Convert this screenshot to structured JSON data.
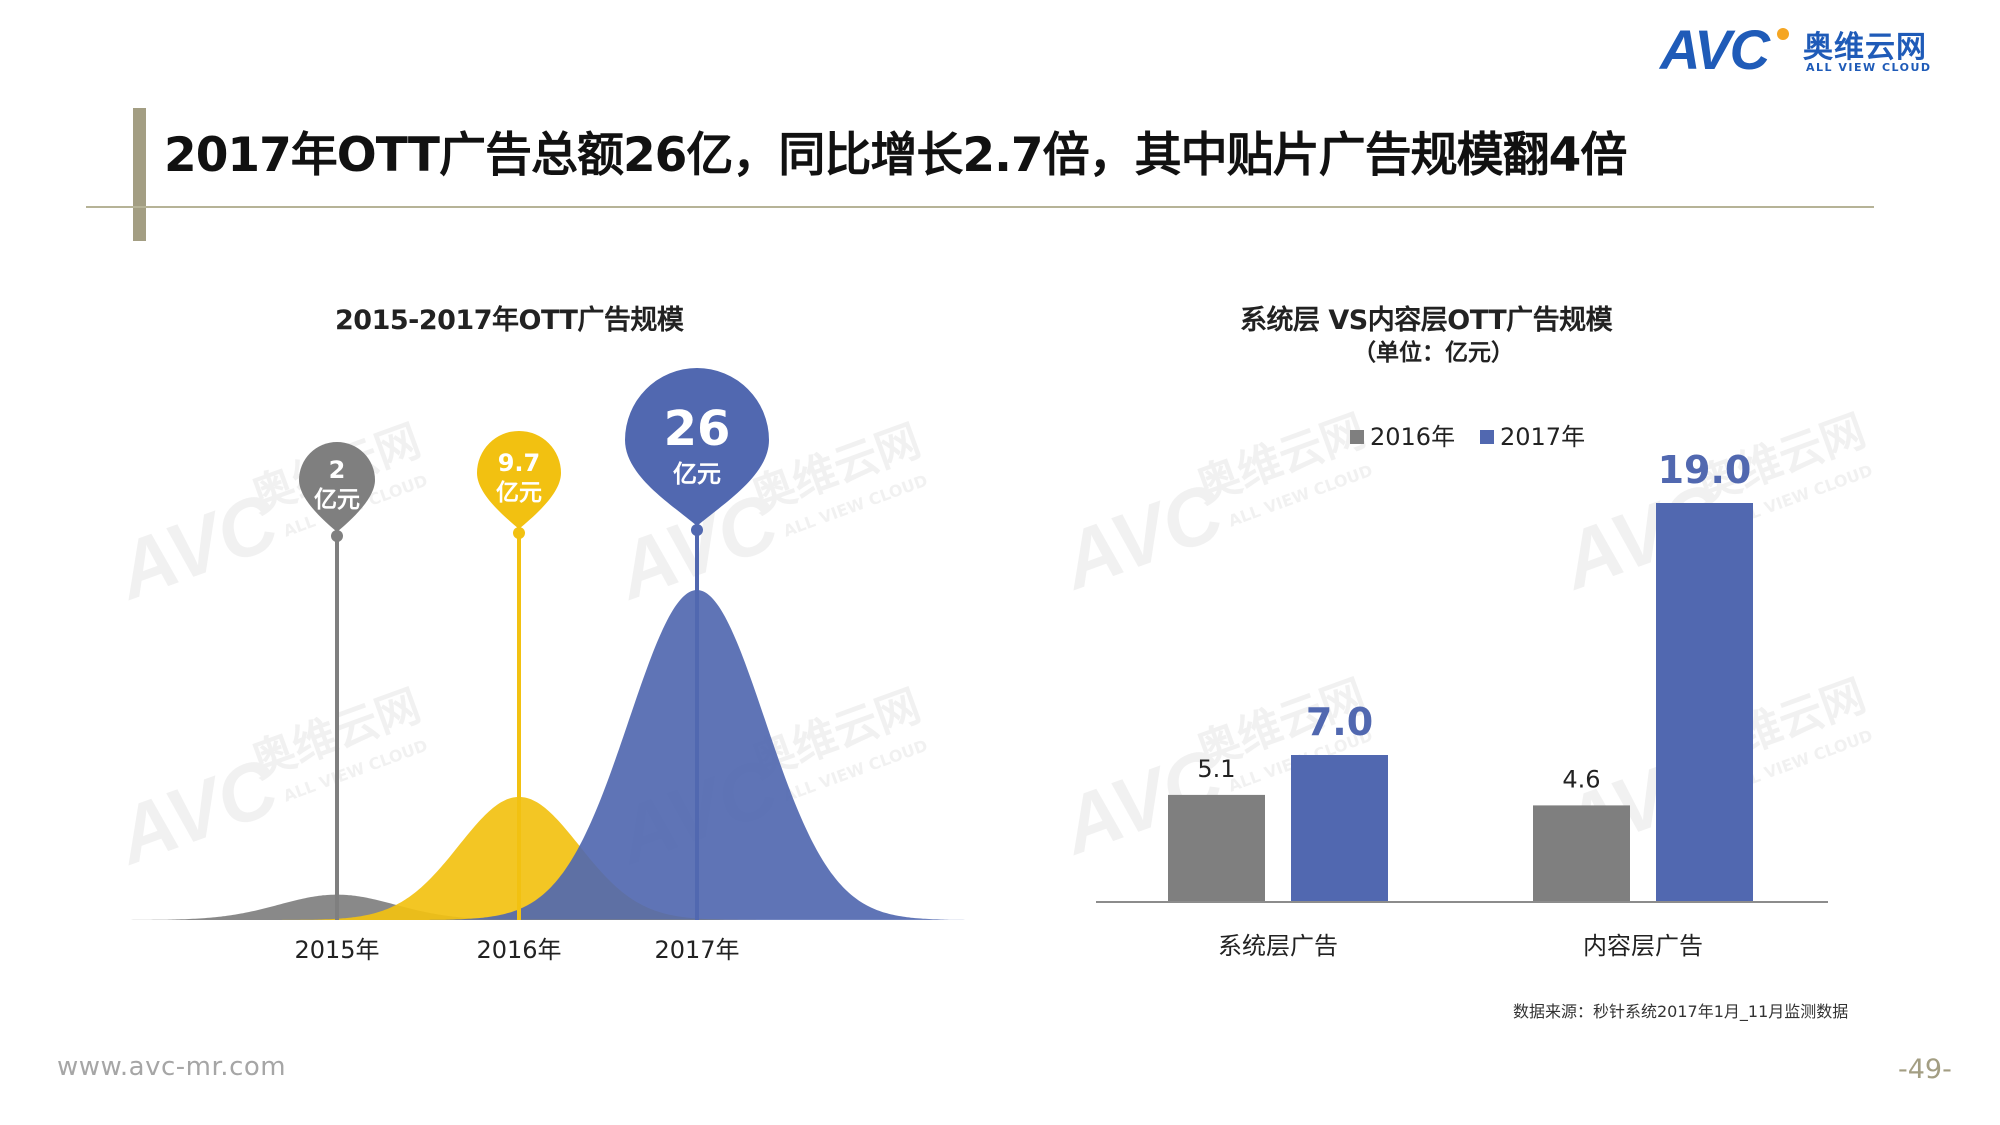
{
  "logo": {
    "brand": "AVC",
    "name_cn": "奥维云网",
    "name_en": "ALL VIEW CLOUD"
  },
  "page_title": "2017年OTT广告总额26亿，同比增长2.7倍，其中贴片广告规模翻4倍",
  "watermark": {
    "brand": "AVC",
    "name_cn": "奥维云网",
    "name_en": "ALL VIEW CLOUD"
  },
  "colors": {
    "grey": "#7f7f7f",
    "yellow": "#f2c111",
    "blue": "#5168b0",
    "title_bar": "#a39e83",
    "logo_blue": "#1f5bb8"
  },
  "chart_data": [
    {
      "type": "area",
      "title": "2015-2017年OTT广告规模",
      "categories": [
        "2015年",
        "2016年",
        "2017年"
      ],
      "values": [
        2,
        9.7,
        26
      ],
      "value_labels": [
        "2",
        "9.7",
        "26"
      ],
      "unit": "亿元",
      "colors": [
        "#7f7f7f",
        "#f2c111",
        "#5168b0"
      ]
    },
    {
      "type": "bar",
      "title": "系统层 VS内容层OTT广告规模",
      "subtitle": "（单位：亿元）",
      "categories": [
        "系统层广告",
        "内容层广告"
      ],
      "series": [
        {
          "name": "2016年",
          "values": [
            5.1,
            4.6
          ],
          "labels": [
            "5.1",
            "4.6"
          ],
          "color": "#7f7f7f"
        },
        {
          "name": "2017年",
          "values": [
            7.0,
            19.0
          ],
          "labels": [
            "7.0",
            "19.0"
          ],
          "color": "#5168b0"
        }
      ],
      "ylim": [
        0,
        20
      ],
      "legend": "top"
    }
  ],
  "source": "数据来源：秒针系统2017年1月_11月监测数据",
  "footer": {
    "url": "www.avc-mr.com",
    "page_number": "-49-"
  }
}
